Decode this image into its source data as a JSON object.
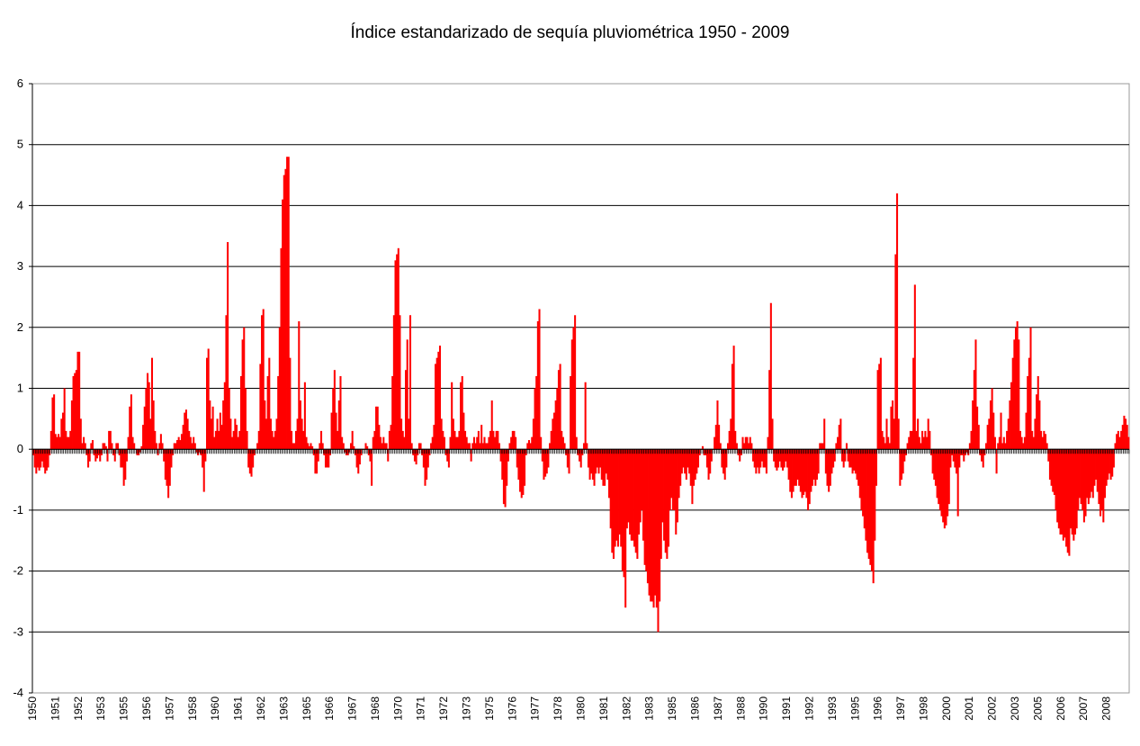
{
  "chart_data": {
    "type": "bar",
    "title": "Índice estandarizado de sequía pluviométrica 1950 - 2009",
    "xlabel": "",
    "ylabel": "",
    "ylim": [
      -4,
      6
    ],
    "yticks": [
      "6",
      "5",
      "4",
      "3",
      "2",
      "1",
      "0",
      "-1",
      "-2",
      "-3",
      "-4"
    ],
    "ytick_values": [
      6,
      5,
      4,
      3,
      2,
      1,
      0,
      -1,
      -2,
      -3,
      -4
    ],
    "grid": true,
    "legend": "none",
    "bar_color": "#ff0000",
    "x_tick_labels": [
      "1950",
      "1951",
      "1952",
      "1953",
      "1955",
      "1956",
      "1957",
      "1958",
      "1960",
      "1961",
      "1962",
      "1963",
      "1965",
      "1966",
      "1967",
      "1968",
      "1970",
      "1971",
      "1972",
      "1973",
      "1975",
      "1976",
      "1977",
      "1978",
      "1980",
      "1981",
      "1982",
      "1983",
      "1985",
      "1986",
      "1987",
      "1988",
      "1990",
      "1991",
      "1992",
      "1993",
      "1995",
      "1996",
      "1997",
      "1998",
      "2000",
      "2001",
      "2002",
      "2003",
      "2005",
      "2006",
      "2007",
      "2008"
    ],
    "series": [
      {
        "start_date": "1950-01",
        "frequency": "monthly",
        "values": [
          -0.1,
          -0.3,
          -0.4,
          -0.3,
          -0.35,
          -0.3,
          -0.2,
          -0.3,
          -0.4,
          -0.35,
          -0.3,
          -0.1,
          0.3,
          0.85,
          0.9,
          0.25,
          0.2,
          0.25,
          0.2,
          0.5,
          0.6,
          1.0,
          0.3,
          0.2,
          0.2,
          0.3,
          0.8,
          1.2,
          1.25,
          1.3,
          1.6,
          1.6,
          0.5,
          0.1,
          0.2,
          0.1,
          -0.1,
          -0.3,
          -0.2,
          0.1,
          0.15,
          -0.1,
          -0.2,
          -0.15,
          -0.1,
          -0.2,
          -0.1,
          0.1,
          0.1,
          0.05,
          -0.2,
          0.3,
          0.3,
          0.1,
          -0.1,
          -0.2,
          0.1,
          0.1,
          -0.1,
          -0.3,
          -0.3,
          -0.6,
          -0.5,
          -0.2,
          0.2,
          0.7,
          0.9,
          0.2,
          0.1,
          0.0,
          -0.1,
          -0.1,
          -0.05,
          0.05,
          0.4,
          0.7,
          1.0,
          1.25,
          1.1,
          0.5,
          1.5,
          0.8,
          0.3,
          0.1,
          -0.1,
          0.1,
          0.25,
          0.1,
          -0.2,
          -0.5,
          -0.6,
          -0.8,
          -0.6,
          -0.3,
          -0.1,
          0.1,
          0.1,
          0.15,
          0.2,
          0.15,
          0.25,
          0.4,
          0.6,
          0.65,
          0.5,
          0.3,
          0.2,
          0.1,
          0.2,
          0.1,
          -0.05,
          -0.1,
          -0.05,
          -0.1,
          -0.3,
          -0.7,
          -0.2,
          1.5,
          1.65,
          0.8,
          0.5,
          0.7,
          0.2,
          0.3,
          0.5,
          0.3,
          0.6,
          0.4,
          0.8,
          1.1,
          2.2,
          3.4,
          1.0,
          0.5,
          0.2,
          0.3,
          0.5,
          0.4,
          0.2,
          0.3,
          1.2,
          1.8,
          2.0,
          1.0,
          0.3,
          -0.3,
          -0.4,
          -0.45,
          -0.3,
          -0.1,
          0.0,
          0.1,
          0.3,
          1.4,
          2.2,
          2.3,
          0.8,
          0.5,
          1.2,
          1.5,
          0.5,
          0.3,
          0.2,
          0.3,
          0.5,
          1.2,
          2.0,
          3.3,
          4.1,
          4.5,
          4.6,
          4.8,
          4.8,
          1.5,
          0.3,
          0.1,
          0.1,
          0.3,
          0.5,
          2.1,
          0.8,
          0.5,
          0.3,
          1.1,
          0.2,
          0.1,
          0.05,
          0.1,
          0.05,
          -0.1,
          -0.4,
          -0.4,
          -0.2,
          0.1,
          0.3,
          0.1,
          -0.1,
          -0.3,
          -0.3,
          -0.3,
          -0.1,
          0.6,
          1.0,
          1.3,
          0.6,
          0.3,
          0.8,
          1.2,
          0.2,
          0.1,
          -0.05,
          -0.1,
          -0.1,
          -0.05,
          0.1,
          0.3,
          0.05,
          -0.1,
          -0.3,
          -0.4,
          -0.25,
          -0.1,
          0.0,
          0.0,
          0.1,
          0.05,
          -0.1,
          -0.2,
          -0.6,
          0.2,
          0.3,
          0.7,
          0.7,
          0.4,
          0.2,
          0.1,
          0.2,
          0.1,
          0.1,
          -0.2,
          0.3,
          0.4,
          1.2,
          2.2,
          3.1,
          3.2,
          3.3,
          2.2,
          0.5,
          0.3,
          0.2,
          1.3,
          1.8,
          0.5,
          2.2,
          0.1,
          -0.1,
          -0.2,
          -0.25,
          -0.1,
          0.1,
          0.1,
          -0.1,
          -0.3,
          -0.6,
          -0.5,
          -0.3,
          -0.1,
          0.1,
          0.2,
          0.4,
          1.4,
          1.5,
          1.6,
          1.7,
          0.5,
          0.3,
          0.2,
          -0.1,
          -0.2,
          -0.3,
          0.2,
          1.1,
          0.5,
          0.3,
          0.2,
          0.2,
          0.3,
          1.1,
          1.2,
          0.6,
          0.3,
          0.2,
          0.1,
          0.1,
          -0.2,
          0.1,
          0.2,
          0.1,
          0.2,
          0.3,
          0.1,
          0.4,
          0.1,
          0.2,
          0.1,
          0.1,
          0.2,
          0.3,
          0.8,
          0.3,
          0.2,
          0.3,
          0.3,
          0.1,
          -0.2,
          -0.5,
          -0.9,
          -0.95,
          -0.6,
          -0.2,
          0.1,
          0.2,
          0.3,
          0.3,
          0.2,
          -0.3,
          -0.5,
          -0.7,
          -0.8,
          -0.75,
          -0.6,
          -0.1,
          0.1,
          0.15,
          0.1,
          0.2,
          0.5,
          1.0,
          1.2,
          2.1,
          2.3,
          0.2,
          -0.2,
          -0.5,
          -0.45,
          -0.4,
          -0.3,
          0.1,
          0.3,
          0.5,
          0.6,
          0.8,
          1.0,
          1.3,
          1.4,
          0.3,
          0.2,
          0.1,
          -0.1,
          -0.3,
          -0.4,
          1.2,
          1.8,
          2.0,
          2.2,
          0.2,
          -0.1,
          -0.2,
          -0.3,
          -0.1,
          0.1,
          1.1,
          0.1,
          -0.3,
          -0.5,
          -0.4,
          -0.5,
          -0.6,
          -0.4,
          -0.3,
          -0.4,
          -0.3,
          -0.5,
          -0.6,
          -0.6,
          -0.4,
          -0.5,
          -0.8,
          -1.3,
          -1.7,
          -1.8,
          -1.6,
          -1.5,
          -1.6,
          -1.4,
          -1.6,
          -2.0,
          -2.1,
          -2.6,
          -1.3,
          -1.2,
          -1.4,
          -1.5,
          -1.5,
          -1.6,
          -1.7,
          -1.8,
          -1.4,
          -1.2,
          -1.0,
          -1.5,
          -1.9,
          -2.0,
          -2.2,
          -2.4,
          -2.5,
          -2.5,
          -2.6,
          -2.4,
          -2.6,
          -3.0,
          -2.5,
          -1.8,
          -1.2,
          -1.5,
          -1.7,
          -1.8,
          -1.6,
          -1.0,
          -0.8,
          -1.0,
          -1.0,
          -1.4,
          -1.2,
          -0.8,
          -0.6,
          -0.4,
          -0.3,
          -0.4,
          -0.5,
          -0.3,
          -0.4,
          -0.6,
          -0.9,
          -0.6,
          -0.5,
          -0.4,
          -0.3,
          -0.1,
          0.0,
          0.05,
          -0.1,
          -0.1,
          -0.3,
          -0.5,
          -0.4,
          -0.2,
          0.0,
          0.2,
          0.4,
          0.8,
          0.4,
          0.1,
          -0.3,
          -0.4,
          -0.5,
          -0.3,
          0.1,
          0.3,
          0.5,
          1.4,
          1.7,
          0.3,
          0.1,
          -0.1,
          -0.2,
          -0.1,
          0.2,
          0.1,
          0.2,
          0.2,
          0.1,
          0.2,
          0.1,
          -0.2,
          -0.3,
          -0.4,
          -0.3,
          -0.4,
          -0.3,
          -0.2,
          -0.3,
          -0.3,
          -0.4,
          0.2,
          1.3,
          2.4,
          0.5,
          -0.2,
          -0.3,
          -0.35,
          -0.3,
          -0.2,
          -0.3,
          -0.35,
          -0.3,
          -0.2,
          -0.3,
          -0.5,
          -0.7,
          -0.8,
          -0.7,
          -0.6,
          -0.6,
          -0.5,
          -0.6,
          -0.7,
          -0.8,
          -0.75,
          -0.7,
          -0.8,
          -1.0,
          -0.9,
          -0.7,
          -0.6,
          -0.5,
          -0.6,
          -0.5,
          -0.4,
          0.1,
          0.1,
          0.1,
          0.5,
          -0.4,
          -0.6,
          -0.7,
          -0.6,
          -0.4,
          -0.3,
          -0.2,
          0.1,
          0.2,
          0.4,
          0.5,
          -0.2,
          -0.3,
          -0.2,
          0.1,
          -0.2,
          -0.3,
          -0.3,
          -0.4,
          -0.35,
          -0.4,
          -0.5,
          -0.6,
          -0.8,
          -1.0,
          -1.1,
          -1.3,
          -1.5,
          -1.7,
          -1.8,
          -1.9,
          -2.0,
          -2.2,
          -1.5,
          -0.6,
          1.3,
          1.4,
          1.5,
          0.3,
          0.2,
          0.1,
          0.5,
          0.2,
          0.1,
          0.7,
          0.8,
          0.5,
          3.2,
          4.2,
          0.5,
          -0.6,
          -0.5,
          -0.4,
          -0.2,
          -0.1,
          0.1,
          0.2,
          0.3,
          0.3,
          1.5,
          2.7,
          0.3,
          0.5,
          0.2,
          0.1,
          0.3,
          0.2,
          0.3,
          0.2,
          0.5,
          0.3,
          -0.1,
          -0.4,
          -0.5,
          -0.6,
          -0.8,
          -0.9,
          -1.0,
          -1.1,
          -1.2,
          -1.3,
          -1.25,
          -1.1,
          -0.9,
          -0.3,
          -0.1,
          -0.2,
          -0.3,
          -0.4,
          -1.1,
          -0.3,
          -0.1,
          -0.1,
          -0.2,
          -0.1,
          -0.05,
          -0.1,
          0.1,
          0.3,
          0.8,
          1.3,
          1.8,
          0.7,
          0.4,
          -0.1,
          -0.2,
          -0.3,
          -0.1,
          0.1,
          0.4,
          0.5,
          0.8,
          1.0,
          0.6,
          0.2,
          -0.4,
          0.1,
          0.2,
          0.6,
          0.1,
          0.2,
          0.1,
          0.3,
          0.5,
          0.8,
          1.1,
          1.5,
          1.8,
          2.0,
          2.1,
          1.8,
          0.3,
          0.2,
          0.1,
          0.2,
          0.6,
          1.2,
          1.5,
          2.0,
          0.3,
          0.2,
          0.5,
          0.9,
          1.2,
          0.8,
          0.3,
          0.2,
          0.3,
          0.25,
          0.1,
          -0.2,
          -0.5,
          -0.6,
          -0.7,
          -0.75,
          -1.0,
          -1.2,
          -1.3,
          -1.4,
          -1.4,
          -1.5,
          -1.45,
          -1.6,
          -1.7,
          -1.75,
          -1.3,
          -1.4,
          -1.5,
          -1.4,
          -1.3,
          -1.0,
          -0.8,
          -0.9,
          -1.0,
          -1.2,
          -1.1,
          -0.8,
          -0.9,
          -0.8,
          -0.7,
          -0.8,
          -0.6,
          -0.5,
          -0.7,
          -0.9,
          -1.1,
          -1.0,
          -1.2,
          -0.8,
          -0.6,
          -0.5,
          -0.4,
          -0.5,
          -0.45,
          -0.3,
          0.1,
          0.25,
          0.3,
          0.2,
          0.3,
          0.4,
          0.55,
          0.5,
          0.4,
          0.2
        ]
      }
    ]
  }
}
